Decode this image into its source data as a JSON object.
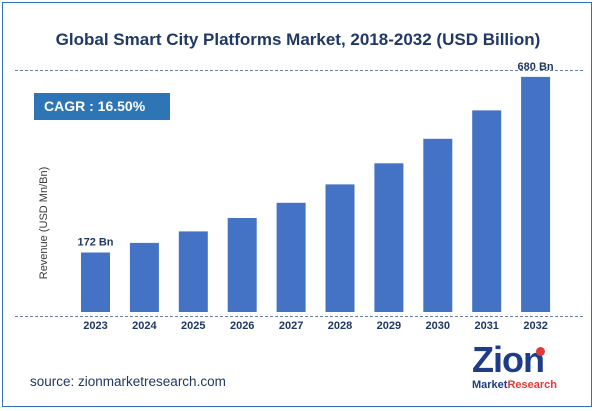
{
  "chart_data": {
    "type": "bar",
    "title": "Global Smart City Platforms Market, 2018-2032 (USD Billion)",
    "ylabel": "Revenue (USD Mn/Bn)",
    "xlabel": "",
    "categories": [
      "2023",
      "2024",
      "2025",
      "2026",
      "2027",
      "2028",
      "2029",
      "2030",
      "2031",
      "2032"
    ],
    "values": [
      172,
      200,
      233,
      272,
      316,
      369,
      430,
      501,
      583,
      680
    ],
    "ylim": [
      0,
      700
    ],
    "grid": false,
    "bar_color": "#4472c4",
    "data_labels": [
      {
        "category": "2023",
        "text": "172 Bn"
      },
      {
        "category": "2032",
        "text": "680 Bn"
      }
    ]
  },
  "cagr": {
    "label": "CAGR :",
    "value": "16.50%"
  },
  "source": "source: zionmarketresearch.com",
  "logo": {
    "word": "Zion",
    "sub_a": "Market",
    "sub_b": "Research"
  },
  "colors": {
    "title": "#203864",
    "badge": "#2e75b6",
    "border": "#2e75b6"
  }
}
